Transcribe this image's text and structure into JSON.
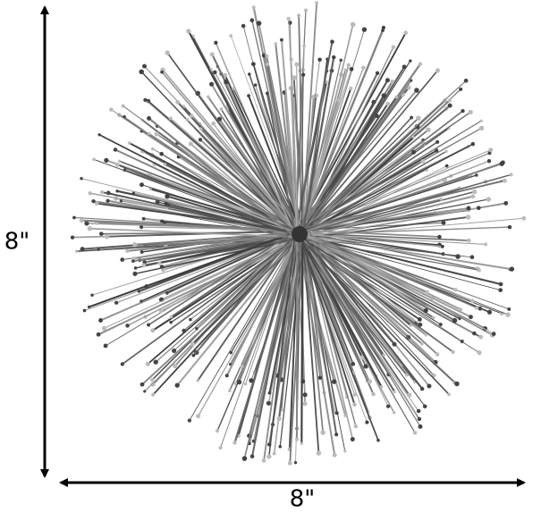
{
  "dimensions": {
    "height": "8\"",
    "width": "8\""
  }
}
